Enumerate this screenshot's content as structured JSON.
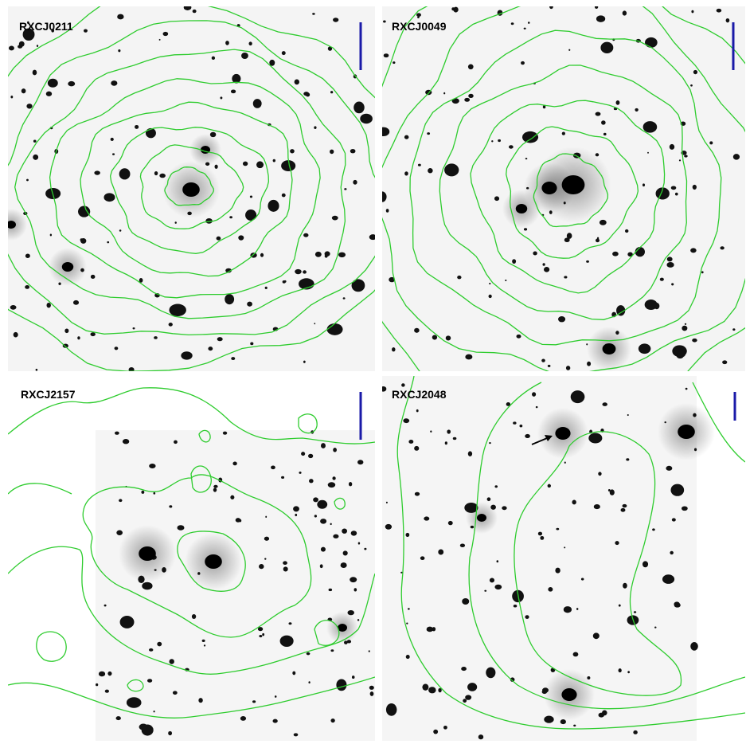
{
  "panels": [
    {
      "label": "RXCJ0211"
    },
    {
      "label": "RXCJ0049"
    },
    {
      "label": "RXCJ2157"
    },
    {
      "label": "RXCJ2048"
    }
  ]
}
